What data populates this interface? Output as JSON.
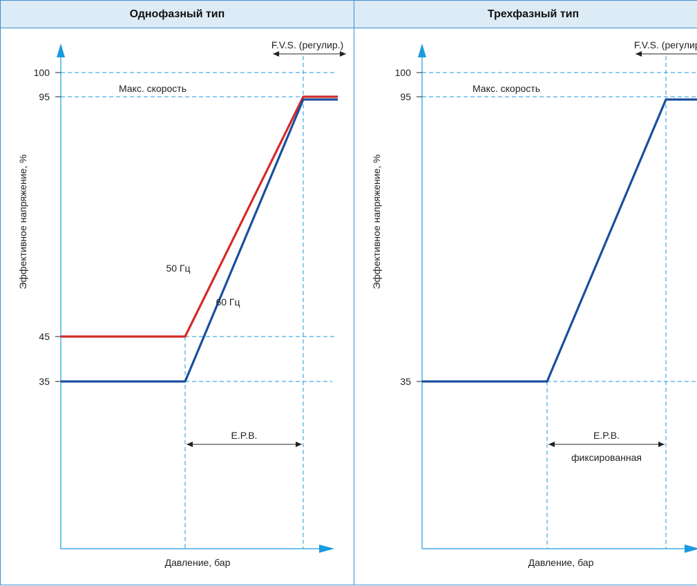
{
  "colors": {
    "accent": "#3d8fd1",
    "header_bg": "#dcebf6",
    "blue_line": "#1a4f9c",
    "red_line": "#d42a2a",
    "axis": "#1a9ae0"
  },
  "chart_data": [
    {
      "type": "line",
      "title": "Однофазный тип",
      "xlabel": "Давление, бар",
      "ylabel": "Эффективное напряжение, %",
      "ylim": [
        0,
        110
      ],
      "y_ticks": [
        35,
        45,
        95,
        100
      ],
      "x_markers": [
        "P1",
        "P2"
      ],
      "reference_lines": {
        "max_speed_label": "Макс. скорость",
        "max_speed_value": 95,
        "limit_value": 100
      },
      "annotations": {
        "fvs": "F.V.S. (регулир.)",
        "epb": "E.P.B.",
        "epb_sub": ""
      },
      "series": [
        {
          "name": "50 Гц",
          "color": "#d42a2a",
          "points": [
            [
              "start",
              45
            ],
            [
              "P1",
              45
            ],
            [
              "P2",
              95
            ],
            [
              "end",
              95
            ]
          ]
        },
        {
          "name": "60 Гц",
          "color": "#1a4f9c",
          "points": [
            [
              "start",
              35
            ],
            [
              "P1",
              35
            ],
            [
              "P2",
              94
            ],
            [
              "end",
              94
            ]
          ]
        }
      ]
    },
    {
      "type": "line",
      "title": "Трехфазный тип",
      "xlabel": "Давление, бар",
      "ylabel": "Эффективное напряжение, %",
      "ylim": [
        0,
        110
      ],
      "y_ticks": [
        35,
        95,
        100
      ],
      "x_markers": [
        "P1",
        "P2"
      ],
      "reference_lines": {
        "max_speed_label": "Макс. скорость",
        "max_speed_value": 95,
        "limit_value": 100
      },
      "annotations": {
        "fvs": "F.V.S. (регулир.)",
        "epb": "E.P.B.",
        "epb_sub": "фиксированная"
      },
      "series": [
        {
          "name": "",
          "color": "#1a4f9c",
          "points": [
            [
              "start",
              35
            ],
            [
              "P1",
              35
            ],
            [
              "P2",
              94
            ],
            [
              "end",
              94
            ]
          ]
        }
      ]
    }
  ]
}
